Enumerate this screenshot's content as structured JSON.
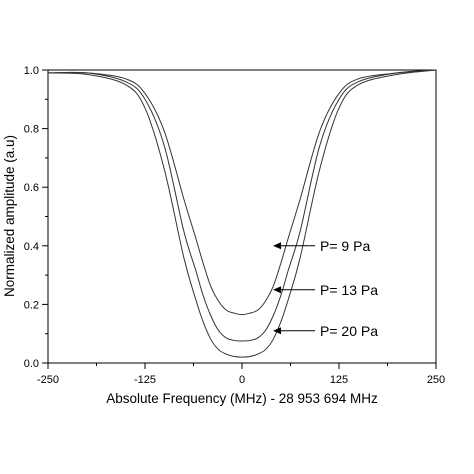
{
  "chart_data": {
    "type": "line",
    "xlabel": "Absolute Frequency (MHz) - 28 953 694 MHz",
    "ylabel": "Normalized amplitude (a.u)",
    "xlim": [
      -250,
      250
    ],
    "ylim": [
      0.0,
      1.0
    ],
    "x_ticks": [
      -250,
      -125,
      0,
      125,
      250
    ],
    "x_tick_labels": [
      "-250",
      "-125",
      "0",
      "125",
      "250"
    ],
    "y_ticks": [
      0.0,
      0.2,
      0.4,
      0.6,
      0.8,
      1.0
    ],
    "y_tick_labels": [
      "0.0",
      "0.2",
      "0.4",
      "0.6",
      "0.8",
      "1.0"
    ],
    "grid": false,
    "series": [
      {
        "x": [
          -250,
          -200,
          -150,
          -125,
          -100,
          -75,
          -60,
          -50,
          -40,
          -30,
          -20,
          -10,
          0,
          10,
          20,
          30,
          40,
          50,
          60,
          75,
          100,
          125,
          150,
          200,
          250
        ],
        "y": [
          0.99,
          0.99,
          0.97,
          0.92,
          0.79,
          0.56,
          0.43,
          0.34,
          0.26,
          0.21,
          0.18,
          0.17,
          0.165,
          0.17,
          0.18,
          0.21,
          0.26,
          0.34,
          0.43,
          0.56,
          0.79,
          0.92,
          0.97,
          0.99,
          1.0
        ]
      },
      {
        "x": [
          -250,
          -200,
          -150,
          -125,
          -100,
          -75,
          -60,
          -50,
          -40,
          -30,
          -20,
          -10,
          0,
          10,
          20,
          30,
          40,
          50,
          60,
          75,
          100,
          125,
          150,
          200,
          250
        ],
        "y": [
          0.99,
          0.99,
          0.96,
          0.9,
          0.74,
          0.45,
          0.32,
          0.23,
          0.16,
          0.11,
          0.085,
          0.077,
          0.075,
          0.077,
          0.085,
          0.11,
          0.16,
          0.23,
          0.32,
          0.45,
          0.74,
          0.9,
          0.96,
          0.99,
          1.0
        ]
      },
      {
        "x": [
          -250,
          -200,
          -150,
          -125,
          -100,
          -75,
          -60,
          -50,
          -40,
          -30,
          -20,
          -10,
          0,
          10,
          20,
          30,
          40,
          50,
          60,
          75,
          100,
          125,
          150,
          200,
          250
        ],
        "y": [
          0.99,
          0.985,
          0.95,
          0.87,
          0.66,
          0.36,
          0.22,
          0.14,
          0.08,
          0.045,
          0.03,
          0.022,
          0.02,
          0.022,
          0.03,
          0.045,
          0.08,
          0.14,
          0.22,
          0.36,
          0.66,
          0.87,
          0.95,
          0.985,
          1.0
        ]
      }
    ],
    "annotations": [
      {
        "text": "P= 9 Pa",
        "arrow_to": [
          40,
          0.4
        ]
      },
      {
        "text": "P= 13 Pa",
        "arrow_to": [
          40,
          0.25
        ]
      },
      {
        "text": "P= 20 Pa",
        "arrow_to": [
          40,
          0.11
        ]
      }
    ]
  }
}
